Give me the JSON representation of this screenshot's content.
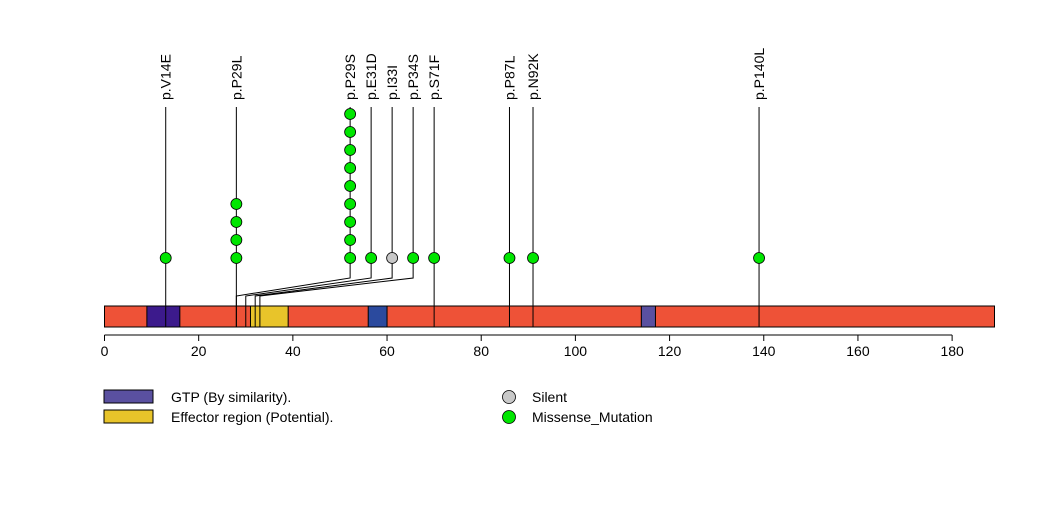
{
  "chart_data": {
    "type": "lollipop",
    "title": "",
    "protein_length": 189,
    "axis": {
      "xlim": [
        0,
        189
      ],
      "ticks": [
        0,
        20,
        40,
        60,
        80,
        100,
        120,
        140,
        160,
        180
      ],
      "tick_labels": [
        "0",
        "20",
        "40",
        "60",
        "80",
        "100",
        "120",
        "140",
        "160",
        "180"
      ]
    },
    "backbone_color": "#EE5237",
    "domains": [
      {
        "name": "GTP (By similarity).",
        "start": 9,
        "end": 16,
        "color": "#3C1A8C"
      },
      {
        "name": "Effector region (Potential).",
        "start": 31,
        "end": 39,
        "color": "#E8C42A"
      },
      {
        "name": "GTP (By similarity).",
        "start": 56,
        "end": 60,
        "color": "#2B4A9E"
      },
      {
        "name": "GTP (By similarity).",
        "start": 114,
        "end": 117,
        "color": "#5A50A0"
      }
    ],
    "mutations": [
      {
        "label": "p.V14E",
        "position": 13,
        "count": 1,
        "type": "Missense_Mutation"
      },
      {
        "label": "p.P29L",
        "position": 28,
        "count": 4,
        "type": "Missense_Mutation"
      },
      {
        "label": "p.P29S",
        "position": 28,
        "count": 9,
        "type": "Missense_Mutation"
      },
      {
        "label": "p.E31D",
        "position": 30,
        "count": 1,
        "type": "Missense_Mutation"
      },
      {
        "label": "p.I33I",
        "position": 32,
        "count": 1,
        "type": "Silent"
      },
      {
        "label": "p.P34S",
        "position": 33,
        "count": 1,
        "type": "Missense_Mutation"
      },
      {
        "label": "p.S71F",
        "position": 70,
        "count": 1,
        "type": "Missense_Mutation"
      },
      {
        "label": "p.P87L",
        "position": 86,
        "count": 1,
        "type": "Missense_Mutation"
      },
      {
        "label": "p.N92K",
        "position": 91,
        "count": 1,
        "type": "Missense_Mutation"
      },
      {
        "label": "p.P140L",
        "position": 139,
        "count": 1,
        "type": "Missense_Mutation"
      }
    ],
    "legend": {
      "domains": [
        {
          "label": "GTP (By similarity).",
          "color": "#5A50A0"
        },
        {
          "label": "Effector region (Potential).",
          "color": "#E8C42A"
        }
      ],
      "mutation_types": [
        {
          "label": "Silent",
          "color": "#C8C8C8"
        },
        {
          "label": "Missense_Mutation",
          "color": "#00E600"
        }
      ]
    }
  }
}
